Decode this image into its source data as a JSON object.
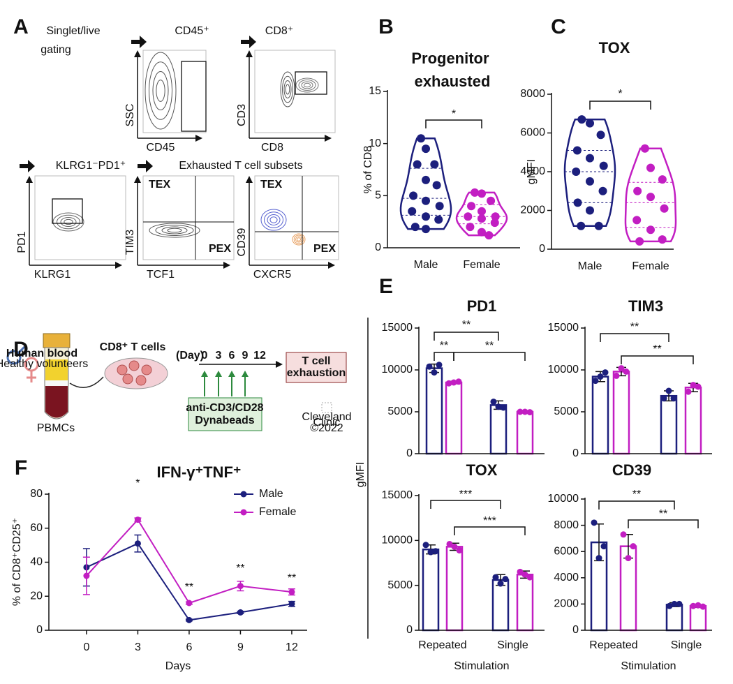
{
  "panel_labels": [
    "A",
    "B",
    "C",
    "D",
    "E",
    "F"
  ],
  "panel_a": {
    "gating_lines": [
      "Singlet/live",
      "gating"
    ],
    "steps": [
      "CD45⁺",
      "CD8⁺",
      "KLRG1⁻PD1⁺",
      "Exhausted T cell subsets"
    ],
    "plots": [
      {
        "x_label": "CD45",
        "y_label": "SSC"
      },
      {
        "x_label": "CD8",
        "y_label": "CD3"
      },
      {
        "x_label": "KLRG1",
        "y_label": "PD1"
      },
      {
        "x_label": "TCF1",
        "y_label": "TIM3",
        "upper_left": "TEX",
        "lower_right": "PEX"
      },
      {
        "x_label": "CXCR5",
        "y_label": "CD39",
        "upper_left": "TEX",
        "lower_right": "PEX"
      }
    ]
  },
  "panel_d": {
    "source_lines": [
      "Human blood",
      "Healthy volunteers"
    ],
    "sample": "PBMCs",
    "cells": "CD8⁺ T cells",
    "day_label": "(Day)",
    "days": [
      "0",
      "3",
      "6",
      "9",
      "12"
    ],
    "treatment_lines": [
      "anti-CD3/CD28",
      "Dynabeads"
    ],
    "outcome_lines": [
      "T cell",
      "exhaustion"
    ],
    "logo_lines": [
      "Cleveland",
      "Clinic",
      "©2022"
    ]
  },
  "panel_e": {
    "y_label": "gMFI"
  },
  "chart_data": [
    {
      "type": "violin",
      "title": "Progenitor exhausted",
      "y_label": "% of CD8",
      "categories": [
        "Male",
        "Female"
      ],
      "colors": [
        "#1c1f7d",
        "#c21ec2"
      ],
      "values": [
        [
          10.5,
          9.5,
          8.0,
          8.0,
          6.5,
          6.0,
          5.0,
          4.5,
          4.0,
          3.5,
          3.0,
          2.7,
          2.0,
          1.8
        ],
        [
          5.3,
          5.2,
          4.5,
          4.0,
          3.5,
          3.0,
          3.0,
          2.8,
          2.4,
          2.0,
          1.5,
          1.2
        ]
      ],
      "ylim": [
        0,
        15
      ],
      "yticks": [
        0,
        5,
        10,
        15
      ],
      "annotations": [
        "*"
      ]
    },
    {
      "type": "violin",
      "title": "TOX",
      "y_label": "gMFI",
      "categories": [
        "Male",
        "Female"
      ],
      "colors": [
        "#1c1f7d",
        "#c21ec2"
      ],
      "values": [
        [
          6700,
          6500,
          5900,
          5100,
          4700,
          4300,
          4000,
          3500,
          3000,
          2400,
          2000,
          1200,
          1200
        ],
        [
          5200,
          4200,
          3600,
          3000,
          2700,
          2100,
          1500,
          1000,
          500,
          400
        ]
      ],
      "ylim": [
        0,
        8000
      ],
      "yticks": [
        0,
        2000,
        4000,
        6000,
        8000
      ],
      "annotations": [
        "*"
      ]
    },
    {
      "type": "bar",
      "title": "PD1",
      "ylim": [
        0,
        15000
      ],
      "yticks": [
        0,
        5000,
        10000,
        15000
      ],
      "annotations": [
        "**",
        "**",
        "**"
      ],
      "series": [
        {
          "color": "#1c1f7d",
          "values": [
            10200,
            5800
          ],
          "errors": [
            500,
            500
          ],
          "points": [
            [
              10400,
              9700,
              10600
            ],
            [
              6200,
              5600,
              5500
            ]
          ]
        },
        {
          "color": "#c21ec2",
          "values": [
            8500,
            5000
          ],
          "errors": [
            150,
            100
          ],
          "points": [
            [
              8400,
              8500,
              8600
            ],
            [
              5000,
              5000,
              4950
            ]
          ]
        }
      ]
    },
    {
      "type": "bar",
      "title": "TIM3",
      "ylim": [
        0,
        15000
      ],
      "yticks": [
        0,
        5000,
        10000,
        15000
      ],
      "annotations": [
        "**",
        "**"
      ],
      "series": [
        {
          "color": "#1c1f7d",
          "values": [
            9200,
            6900
          ],
          "errors": [
            600,
            600
          ],
          "points": [
            [
              8700,
              9200,
              9700
            ],
            [
              6600,
              7500,
              6600
            ]
          ]
        },
        {
          "color": "#c21ec2",
          "values": [
            9800,
            7900
          ],
          "errors": [
            500,
            500
          ],
          "points": [
            [
              9300,
              10200,
              9800
            ],
            [
              7400,
              8200,
              8000
            ]
          ]
        }
      ]
    },
    {
      "type": "bar",
      "title": "TOX",
      "x_label": "Stimulation",
      "categories": [
        "Repeated",
        "Single"
      ],
      "ylim": [
        0,
        15000
      ],
      "yticks": [
        0,
        5000,
        10000,
        15000
      ],
      "annotations": [
        "***",
        "***"
      ],
      "series": [
        {
          "color": "#1c1f7d",
          "values": [
            9000,
            5600
          ],
          "errors": [
            500,
            600
          ],
          "points": [
            [
              9500,
              8700,
              8800
            ],
            [
              5900,
              5200,
              5700
            ]
          ]
        },
        {
          "color": "#c21ec2",
          "values": [
            9300,
            6200
          ],
          "errors": [
            400,
            400
          ],
          "points": [
            [
              9600,
              9300,
              8900
            ],
            [
              6500,
              6200,
              5900
            ]
          ]
        }
      ]
    },
    {
      "type": "bar",
      "title": "CD39",
      "x_label": "Stimulation",
      "categories": [
        "Repeated",
        "Single"
      ],
      "ylim": [
        0,
        10000
      ],
      "yticks": [
        0,
        2000,
        4000,
        6000,
        8000,
        10000
      ],
      "annotations": [
        "**",
        "**"
      ],
      "series": [
        {
          "color": "#1c1f7d",
          "values": [
            6700,
            1950
          ],
          "errors": [
            1400,
            150
          ],
          "points": [
            [
              8200,
              5500,
              6400
            ],
            [
              1850,
              2000,
              2000
            ]
          ]
        },
        {
          "color": "#c21ec2",
          "values": [
            6400,
            1850
          ],
          "errors": [
            900,
            100
          ],
          "points": [
            [
              7300,
              5500,
              6400
            ],
            [
              1850,
              1900,
              1800
            ]
          ]
        }
      ]
    },
    {
      "type": "line",
      "title": "IFN-γ⁺TNF⁺",
      "x_label": "Days",
      "y_label": "% of CD8⁺CD25⁺",
      "x": [
        0,
        3,
        6,
        9,
        12
      ],
      "xlim": [
        -2.2,
        12.9
      ],
      "xticks": [
        0,
        3,
        6,
        9,
        12
      ],
      "ylim": [
        0,
        80
      ],
      "yticks": [
        0,
        20,
        40,
        60,
        80
      ],
      "legend": "upper right",
      "series": [
        {
          "name": "Male",
          "color": "#1c1f7d",
          "values": [
            37,
            51,
            6,
            10.5,
            15.5
          ],
          "errors": [
            11,
            5,
            0.5,
            0.7,
            1.5
          ]
        },
        {
          "name": "Female",
          "color": "#c21ec2",
          "values": [
            32,
            65,
            16,
            26,
            22.5
          ],
          "errors": [
            11,
            1,
            0.7,
            2.8,
            1.8
          ]
        }
      ],
      "annotations": [
        "*",
        "**",
        "**",
        "**"
      ]
    }
  ]
}
